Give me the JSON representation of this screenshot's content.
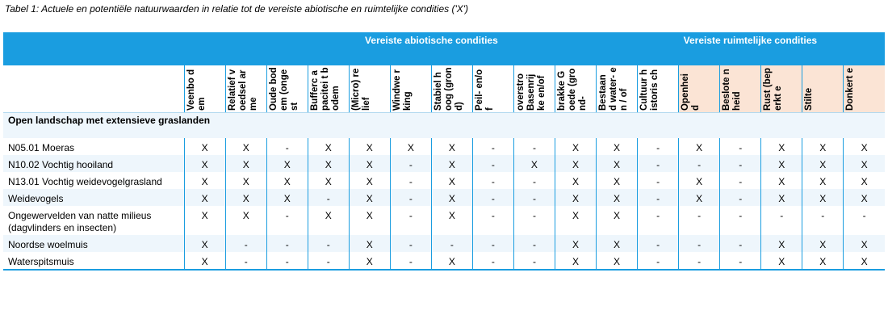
{
  "caption": "Tabel 1: Actuele en potentiële natuurwaarden in relatie tot de vereiste abiotische en ruimtelijke condities ('X')",
  "groups": {
    "abiotic": "Vereiste abiotische condities",
    "spatial": "Vereiste ruimtelijke condities"
  },
  "columns": [
    "Veenbo dem",
    "Relatief voedsel arme",
    "Oude bodem (ongest",
    "Bufferc apacitei t bodem",
    "(Micro) relief",
    "Windwe rking",
    "Stabiel hoog (grond)",
    "Peil- en/of",
    "overstro Basenrij ke en/of",
    "brakke Goede (grond-",
    "Bestaan d water- en / of",
    "Cultuur historis ch",
    "Openhei d",
    "Beslote nheid",
    "Rust (beperkt e",
    "Stilte",
    "Donkert e"
  ],
  "section_title": "Open landschap met extensieve graslanden",
  "rows": [
    {
      "label": "N05.01 Moeras",
      "values": [
        "X",
        "X",
        "-",
        "X",
        "X",
        "X",
        "X",
        "-",
        "-",
        "X",
        "X",
        "-",
        "X",
        "-",
        "X",
        "X",
        "X"
      ]
    },
    {
      "label": "N10.02 Vochtig hooiland",
      "values": [
        "X",
        "X",
        "X",
        "X",
        "X",
        "-",
        "X",
        "-",
        "X",
        "X",
        "X",
        "-",
        "-",
        "-",
        "X",
        "X",
        "X"
      ]
    },
    {
      "label": "N13.01 Vochtig weidevogelgrasland",
      "values": [
        "X",
        "X",
        "X",
        "X",
        "X",
        "-",
        "X",
        "-",
        "-",
        "X",
        "X",
        "-",
        "X",
        "-",
        "X",
        "X",
        "X"
      ]
    },
    {
      "label": "Weidevogels",
      "values": [
        "X",
        "X",
        "X",
        "-",
        "X",
        "-",
        "X",
        "-",
        "-",
        "X",
        "X",
        "-",
        "X",
        "-",
        "X",
        "X",
        "X"
      ]
    },
    {
      "label": "Ongewervelden van natte milieus (dagvlinders en insecten)",
      "values": [
        "X",
        "X",
        "-",
        "X",
        "X",
        "-",
        "X",
        "-",
        "-",
        "X",
        "X",
        "-",
        "-",
        "-",
        "-",
        "-",
        "-"
      ]
    },
    {
      "label": "Noordse woelmuis",
      "values": [
        "X",
        "-",
        "-",
        "-",
        "X",
        "-",
        "-",
        "-",
        "-",
        "X",
        "X",
        "-",
        "-",
        "-",
        "X",
        "X",
        "X"
      ]
    },
    {
      "label": "Waterspitsmuis",
      "values": [
        "X",
        "-",
        "-",
        "-",
        "X",
        "-",
        "X",
        "-",
        "-",
        "X",
        "X",
        "-",
        "-",
        "-",
        "X",
        "X",
        "X"
      ]
    }
  ],
  "colors": {
    "header_blue": "#1a9de0",
    "spatial_tint": "#fbe4d5",
    "row_tint": "#eef6fc"
  }
}
